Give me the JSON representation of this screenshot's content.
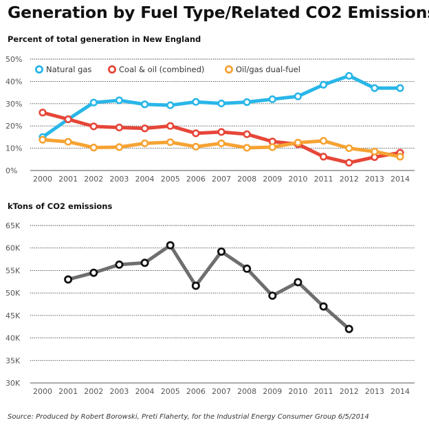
{
  "title": "Generation by Fuel Type/Related CO2 Emissions",
  "source": "Source: Produced by Robert Borowski, Preti Flaherty, for the Industrial Energy Consumer Group 6/5/2014",
  "chart_data": [
    {
      "type": "line",
      "title": "Percent of total generation in New England",
      "x": [
        2000,
        2001,
        2002,
        2003,
        2004,
        2005,
        2006,
        2007,
        2008,
        2009,
        2010,
        2011,
        2012,
        2013,
        2014
      ],
      "y_ticks": [
        "0%",
        "10%",
        "20%",
        "30%",
        "40%",
        "50%"
      ],
      "ylim": [
        0,
        50
      ],
      "grid": true,
      "legend_position": "top",
      "series": [
        {
          "name": "Natural gas",
          "color": "#29b6e8",
          "values": [
            15,
            23,
            30.5,
            31.5,
            29.7,
            29.3,
            30.8,
            30.1,
            30.7,
            32,
            33.3,
            38.5,
            42.5,
            37,
            37
          ]
        },
        {
          "name": "Coal & oil (combined)",
          "color": "#e64638",
          "values": [
            26,
            23,
            19.8,
            19.3,
            18.9,
            20,
            16.7,
            17.3,
            16.3,
            13,
            11.8,
            6.2,
            3.5,
            6,
            8
          ]
        },
        {
          "name": "Oil/gas dual-fuel",
          "color": "#f6a333",
          "values": [
            13.8,
            12.9,
            10.3,
            10.5,
            12.2,
            12.7,
            10.7,
            12.2,
            10.2,
            10.5,
            12.5,
            13.3,
            10,
            8.5,
            6.2
          ]
        }
      ]
    },
    {
      "type": "line",
      "title": "kTons of CO2 emissions",
      "x": [
        2000,
        2001,
        2002,
        2003,
        2004,
        2005,
        2006,
        2007,
        2008,
        2009,
        2010,
        2011,
        2012,
        2013,
        2014
      ],
      "y_ticks": [
        "30K",
        "35K",
        "40K",
        "45K",
        "50K",
        "55K",
        "60K",
        "65K"
      ],
      "ylim": [
        30,
        65
      ],
      "grid": true,
      "series": [
        {
          "color": "#6e6e6e",
          "values": [
            null,
            53,
            54.5,
            56.3,
            56.7,
            60.6,
            51.6,
            59.2,
            55.4,
            49.4,
            52.4,
            47,
            42,
            null,
            null
          ]
        }
      ]
    }
  ]
}
